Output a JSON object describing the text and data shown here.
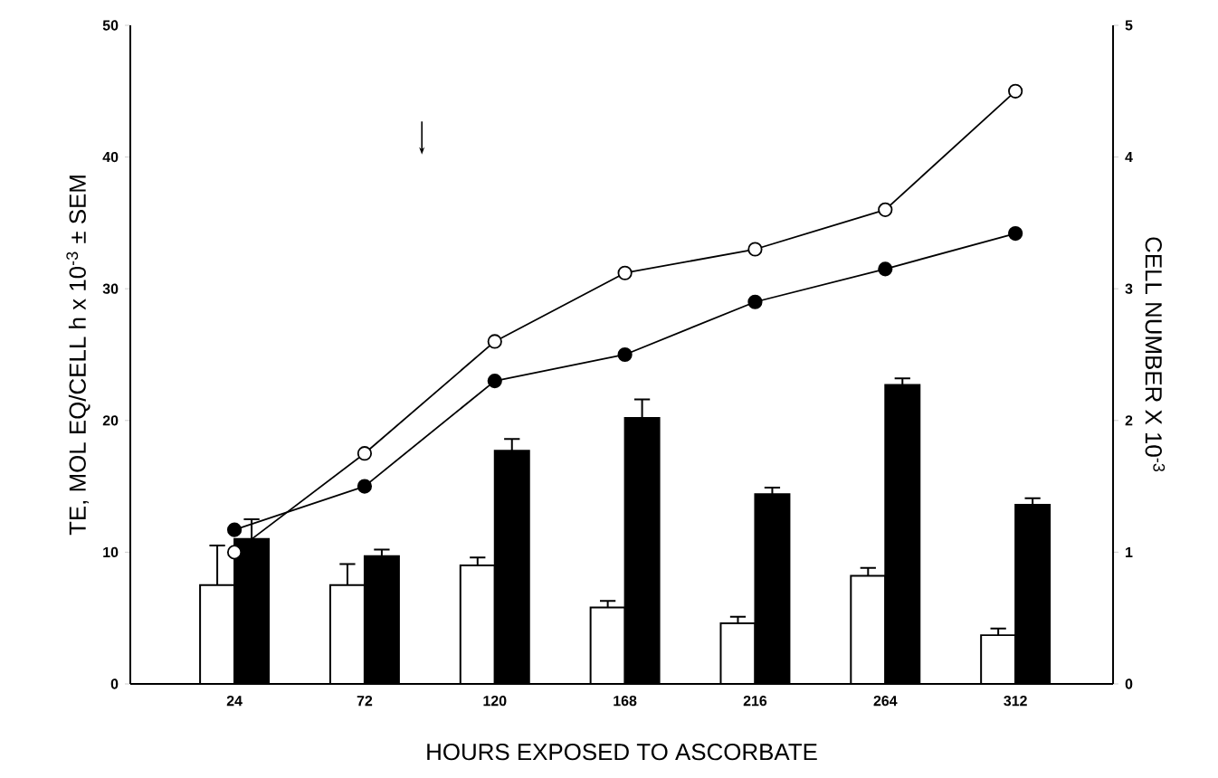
{
  "chart_data": {
    "type": "bar",
    "xlabel": "HOURS EXPOSED TO  ASCORBATE",
    "ylabel": "TE, MOL EQ/CELL  h x 10$^{-3}$ ± SEM",
    "y2label": "CELL NUMBER X 10$^{-3}$",
    "categories": [
      "24",
      "72",
      "120",
      "168",
      "216",
      "264",
      "312"
    ],
    "ylim": [
      0,
      50
    ],
    "yticks": [
      0,
      10,
      20,
      30,
      40,
      50
    ],
    "y2lim": [
      0,
      5
    ],
    "y2ticks": [
      0,
      1,
      2,
      3,
      4,
      5
    ],
    "series": [
      {
        "color": "#ffffff",
        "values": [
          7.5,
          7.5,
          9,
          5.8,
          4.6,
          8.2,
          3.7
        ],
        "errors": [
          [
            7.5,
            10.5
          ],
          [
            7.5,
            9.1
          ],
          [
            9,
            9.6
          ],
          [
            5.8,
            6.3
          ],
          [
            4.6,
            5.1
          ],
          [
            8.2,
            8.8
          ],
          [
            3.7,
            4.2
          ]
        ]
      },
      {
        "color": "#000000",
        "values": [
          11,
          9.7,
          17.7,
          20.2,
          14.4,
          22.7,
          13.6
        ],
        "errors": [
          [
            11,
            12.5
          ],
          [
            9.7,
            10.2
          ],
          [
            17.7,
            18.6
          ],
          [
            20.2,
            21.6
          ],
          [
            14.4,
            14.9
          ],
          [
            22.7,
            23.2
          ],
          [
            13.6,
            14.1
          ]
        ]
      },
      {
        "type": "line",
        "axis": "y2",
        "marker": "circle",
        "color": "#ffffff",
        "values": [
          1.0,
          1.75,
          2.6,
          3.12,
          3.3,
          3.6,
          4.5
        ]
      },
      {
        "type": "line",
        "axis": "y2",
        "marker": "circle",
        "color": "#000000",
        "values": [
          1.17,
          1.5,
          2.3,
          2.5,
          2.9,
          3.15,
          3.42
        ]
      }
    ]
  }
}
